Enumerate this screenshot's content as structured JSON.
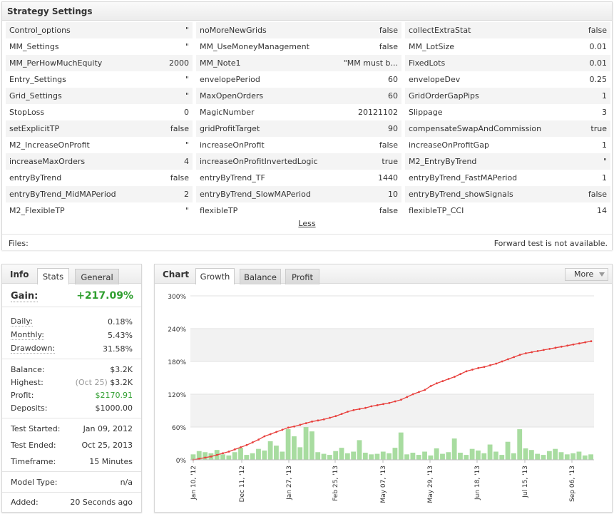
{
  "strategy": {
    "title": "Strategy Settings",
    "rows": [
      [
        [
          "Control_options",
          "\""
        ],
        [
          "noMoreNewGrids",
          "false"
        ],
        [
          "collectExtraStat",
          "false"
        ]
      ],
      [
        [
          "MM_Settings",
          "\""
        ],
        [
          "MM_UseMoneyManagement",
          "false"
        ],
        [
          "MM_LotSize",
          "0.01"
        ]
      ],
      [
        [
          "MM_PerHowMuchEquity",
          "2000"
        ],
        [
          "MM_Note1",
          "\"MM must b..."
        ],
        [
          "FixedLots",
          "0.01"
        ]
      ],
      [
        [
          "Entry_Settings",
          "\""
        ],
        [
          "envelopePeriod",
          "60"
        ],
        [
          "envelopeDev",
          "0.25"
        ]
      ],
      [
        [
          "Grid_Settings",
          "\""
        ],
        [
          "MaxOpenOrders",
          "60"
        ],
        [
          "GridOrderGapPips",
          "1"
        ]
      ],
      [
        [
          "StopLoss",
          "0"
        ],
        [
          "MagicNumber",
          "20121102"
        ],
        [
          "Slippage",
          "3"
        ]
      ],
      [
        [
          "setExplicitTP",
          "false"
        ],
        [
          "gridProfitTarget",
          "90"
        ],
        [
          "compensateSwapAndCommission",
          "true"
        ]
      ],
      [
        [
          "M2_IncreaseOnProfit",
          "\""
        ],
        [
          "increaseOnProfit",
          "false"
        ],
        [
          "increaseOnProfitGap",
          "1"
        ]
      ],
      [
        [
          "increaseMaxOrders",
          "4"
        ],
        [
          "increaseOnProfitInvertedLogic",
          "true"
        ],
        [
          "M2_EntryByTrend",
          "\""
        ]
      ],
      [
        [
          "entryByTrend",
          "false"
        ],
        [
          "entryByTrend_TF",
          "1440"
        ],
        [
          "entryByTrend_FastMAPeriod",
          "1"
        ]
      ],
      [
        [
          "entryByTrend_MidMAPeriod",
          "2"
        ],
        [
          "entryByTrend_SlowMAPeriod",
          "10"
        ],
        [
          "entryByTrend_showSignals",
          "false"
        ]
      ],
      [
        [
          "M2_FlexibleTP",
          "\""
        ],
        [
          "flexibleTP",
          "false"
        ],
        [
          "flexibleTP_CCI",
          "14"
        ]
      ]
    ],
    "less_label": "Less",
    "files_label": "Files:",
    "forward_text": "Forward test is not available."
  },
  "info": {
    "title": "Info",
    "tabs": [
      "Stats",
      "General"
    ],
    "gain_label": "Gain:",
    "gain_value": "+217.09%",
    "daily_label": "Daily:",
    "daily_value": "0.18%",
    "monthly_label": "Monthly:",
    "monthly_value": "5.43%",
    "drawdown_label": "Drawdown:",
    "drawdown_value": "31.58%",
    "balance_label": "Balance:",
    "balance_value": "$3.2K",
    "highest_label": "Highest:",
    "highest_date": "(Oct 25)",
    "highest_value": "$3.2K",
    "profit_label": "Profit:",
    "profit_value": "$2170.91",
    "deposits_label": "Deposits:",
    "deposits_value": "$1000.00",
    "test_started_label": "Test Started:",
    "test_started_value": "Jan 09, 2012",
    "test_ended_label": "Test Ended:",
    "test_ended_value": "Oct 25, 2013",
    "timeframe_label": "Timeframe:",
    "timeframe_value": "15 Minutes",
    "model_type_label": "Model Type:",
    "model_type_value": "n/a",
    "added_label": "Added:",
    "added_value": "20 Seconds ago",
    "colors": {
      "positive": "#2e9e2e"
    }
  },
  "chart": {
    "title": "Chart",
    "tabs": [
      "Growth",
      "Balance",
      "Profit"
    ],
    "more_label": "More",
    "icons": {
      "more": "chevron-down-icon"
    }
  },
  "chart_data": {
    "type": "line",
    "yticks": [
      "300%",
      "240%",
      "180%",
      "120%",
      "60%",
      "0%"
    ],
    "ylim": [
      0,
      300
    ],
    "xticks": [
      "Jan 10, '12",
      "Dec 11, '12",
      "Jan 27, '13",
      "Feb 25, '13",
      "May 07, '13",
      "May 29, '13",
      "Jun 18, '13",
      "Jul 15, '13",
      "Sep 06, '13"
    ],
    "series": [
      {
        "type": "line",
        "color": "#e8403d",
        "values": [
          0,
          2,
          4,
          6,
          9,
          12,
          15,
          19,
          23,
          27,
          32,
          37,
          43,
          47,
          51,
          55,
          59,
          61,
          64,
          67,
          70,
          72,
          74,
          77,
          80,
          84,
          88,
          91,
          93,
          95,
          98,
          100,
          102,
          104,
          107,
          110,
          115,
          120,
          124,
          128,
          135,
          140,
          144,
          148,
          152,
          157,
          162,
          165,
          168,
          170,
          173,
          176,
          180,
          184,
          188,
          192,
          195,
          197,
          199,
          201,
          203,
          205,
          207,
          209,
          211,
          213,
          215,
          217
        ]
      },
      {
        "type": "bar",
        "color": "#a8dca0",
        "values": [
          10,
          16,
          14,
          12,
          18,
          10,
          8,
          14,
          22,
          9,
          12,
          20,
          17,
          34,
          26,
          15,
          56,
          43,
          23,
          60,
          52,
          14,
          11,
          9,
          16,
          22,
          12,
          15,
          36,
          13,
          10,
          11,
          15,
          12,
          22,
          50,
          10,
          13,
          9,
          15,
          8,
          21,
          11,
          14,
          39,
          13,
          9,
          20,
          17,
          12,
          28,
          15,
          9,
          33,
          12,
          56,
          21,
          18,
          11,
          9,
          16,
          20,
          14,
          10,
          12,
          15,
          8,
          10
        ]
      }
    ]
  }
}
